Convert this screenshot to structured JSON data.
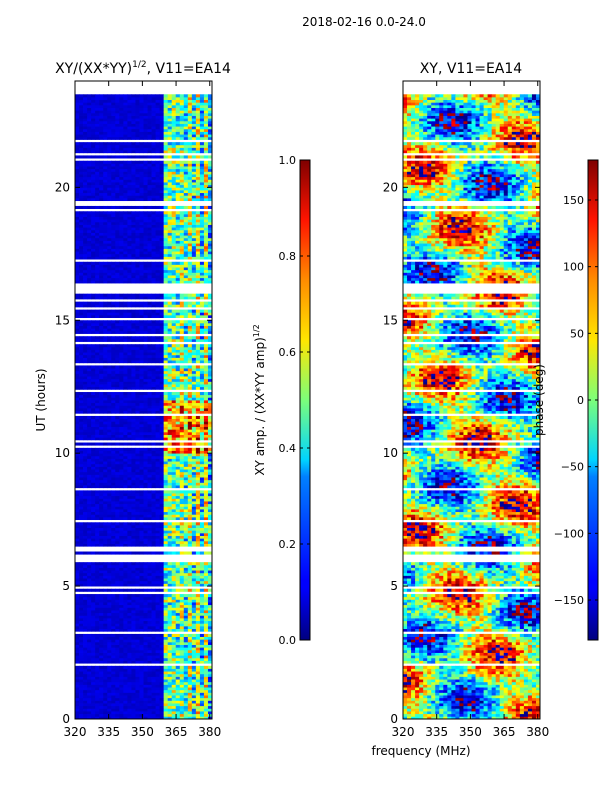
{
  "figure": {
    "suptitle": "2018-02-16 0.0-24.0"
  },
  "chart_data": [
    {
      "type": "heatmap",
      "title_main": "XY/(XX*YY)",
      "title_exp": "1/2",
      "title_tail": ", V11=EA14",
      "xlabel": "",
      "ylabel": "UT (hours)",
      "xlim": [
        320,
        381
      ],
      "ylim": [
        0,
        24
      ],
      "xticks": [
        "320",
        "335",
        "350",
        "365",
        "380"
      ],
      "xtick_values": [
        320,
        335,
        350,
        365,
        380
      ],
      "yticks": [
        "0",
        "5",
        "10",
        "15",
        "20"
      ],
      "ytick_values": [
        0,
        5,
        10,
        15,
        20
      ],
      "data_end_hour": 23.6,
      "band_start_mhz": 359.5,
      "colorbar": {
        "label_main": "XY amp. / (XX*YY amp)",
        "label_exp": "1/2",
        "range": [
          0.0,
          1.0
        ],
        "ticks": [
          "0.0",
          "0.2",
          "0.4",
          "0.6",
          "0.8",
          "1.0"
        ],
        "tick_values": [
          0.0,
          0.2,
          0.4,
          0.6,
          0.8,
          1.0
        ]
      }
    },
    {
      "type": "heatmap",
      "title": "XY, V11=EA14",
      "xlabel": "frequency (MHz)",
      "ylabel": "",
      "xlim": [
        320,
        381
      ],
      "ylim": [
        0,
        24
      ],
      "xticks": [
        "320",
        "335",
        "350",
        "365",
        "380"
      ],
      "xtick_values": [
        320,
        335,
        350,
        365,
        380
      ],
      "yticks": [
        "0",
        "5",
        "10",
        "15",
        "20"
      ],
      "ytick_values": [
        0,
        5,
        10,
        15,
        20
      ],
      "data_end_hour": 23.6,
      "colorbar": {
        "label": "phase (deg)",
        "range": [
          -180,
          180
        ],
        "ticks": [
          "−150",
          "−100",
          "−50",
          "0",
          "50",
          "100",
          "150"
        ],
        "tick_values": [
          -150,
          -100,
          -50,
          0,
          50,
          100,
          150
        ]
      }
    }
  ]
}
